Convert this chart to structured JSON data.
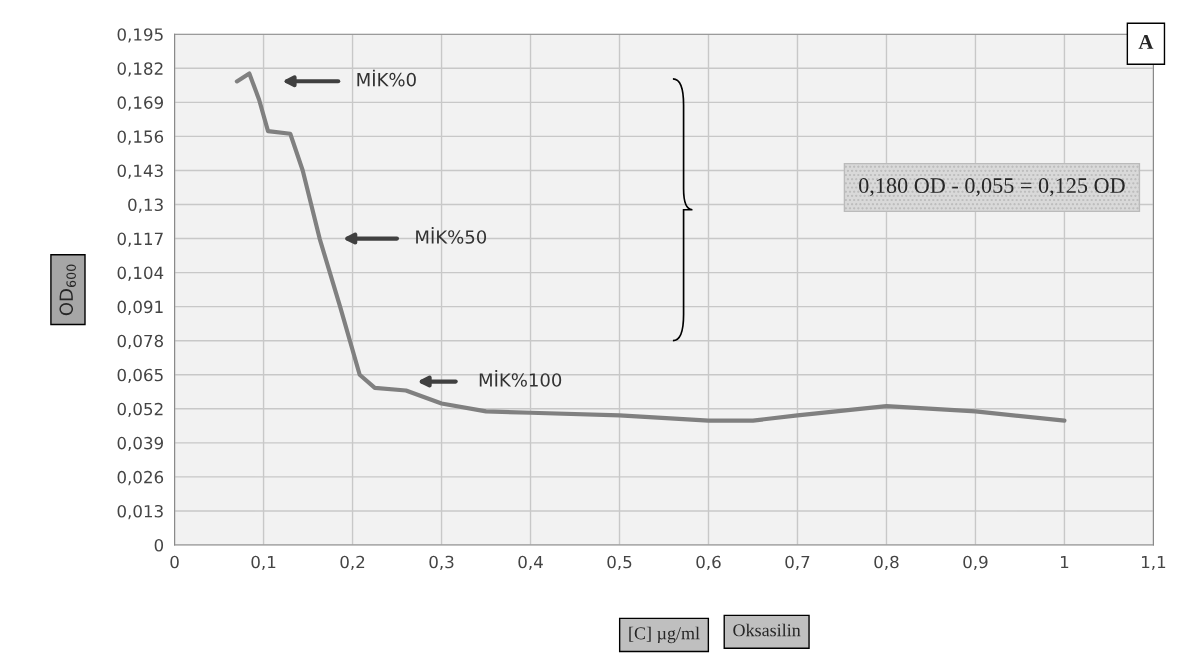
{
  "chart_data": {
    "type": "line",
    "x": [
      0.07,
      0.084,
      0.095,
      0.105,
      0.13,
      0.144,
      0.163,
      0.186,
      0.208,
      0.225,
      0.26,
      0.3,
      0.35,
      0.4,
      0.5,
      0.6,
      0.65,
      0.7,
      0.8,
      0.9,
      1.0
    ],
    "series": [
      {
        "color": "#808080",
        "values": [
          0.177,
          0.18,
          0.17,
          0.158,
          0.157,
          0.143,
          0.117,
          0.091,
          0.065,
          0.06,
          0.059,
          0.054,
          0.051,
          0.0505,
          0.0495,
          0.0475,
          0.0475,
          0.0495,
          0.053,
          0.051,
          0.0475
        ]
      }
    ],
    "xlabel": "[C] µg/ml",
    "ylabel": "OD$_{600}$",
    "xlim": [
      0,
      1.1
    ],
    "xticks": [
      0,
      {
        "value": 0.1,
        "label": "0,1"
      },
      {
        "value": 0.2,
        "label": "0,2"
      },
      {
        "value": 0.3,
        "label": "0,3"
      },
      {
        "value": 0.4,
        "label": "0,4"
      },
      {
        "value": 0.5,
        "label": "0,5"
      },
      {
        "value": 0.6,
        "label": "0,6"
      },
      {
        "value": 0.7,
        "label": "0,7"
      },
      {
        "value": 0.8,
        "label": "0,8"
      },
      {
        "value": 0.9,
        "label": "0,9"
      },
      1,
      {
        "value": 1.1,
        "label": "1,1"
      }
    ],
    "ylim": [
      0,
      0.195
    ],
    "yticks": [
      0,
      {
        "value": 0.013,
        "label": "0,013"
      },
      {
        "value": 0.026,
        "label": "0,026"
      },
      {
        "value": 0.039,
        "label": "0,039"
      },
      {
        "value": 0.052,
        "label": "0,052"
      },
      {
        "value": 0.065,
        "label": "0,065"
      },
      {
        "value": 0.078,
        "label": "0,078"
      },
      {
        "value": 0.091,
        "label": "0,091"
      },
      {
        "value": 0.104,
        "label": "0,104"
      },
      {
        "value": 0.117,
        "label": "0,117"
      },
      {
        "value": 0.13,
        "label": "0,13"
      },
      {
        "value": 0.143,
        "label": "0,143"
      },
      {
        "value": 0.156,
        "label": "0,156"
      },
      {
        "value": 0.169,
        "label": "0,169"
      },
      {
        "value": 0.182,
        "label": "0,182"
      },
      {
        "value": 0.195,
        "label": "0,195"
      }
    ],
    "grid": true,
    "annotations": [
      "MİK%0",
      "MİK%50",
      "MİK%100",
      "0,180 OD - 0,055 = 0,125 OD",
      "A",
      "Oksasilin"
    ]
  }
}
